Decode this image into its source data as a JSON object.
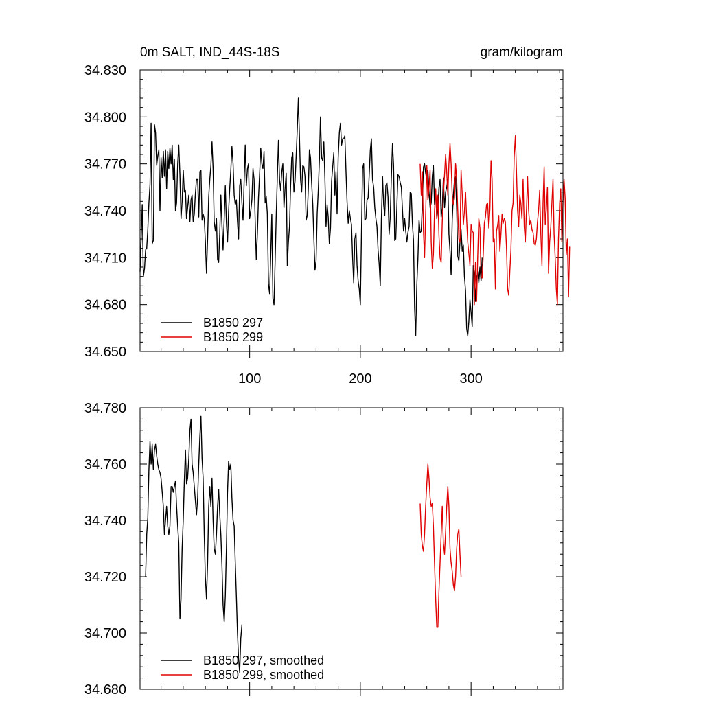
{
  "chart_data": [
    {
      "type": "line",
      "title_left": "0m SALT, IND_44S-18S",
      "title_right": "gram/kilogram",
      "xlabel": "",
      "ylabel": "",
      "xlim": [
        1,
        383
      ],
      "ylim": [
        34.65,
        34.83
      ],
      "yticks": [
        "34.650",
        "34.680",
        "34.710",
        "34.740",
        "34.770",
        "34.800",
        "34.830"
      ],
      "xticks": [
        "100",
        "200",
        "300"
      ],
      "legend_position": "bottom-left",
      "series": [
        {
          "name": "B1850 297",
          "color": "#000000",
          "x_start": 1,
          "values": [
            34.701,
            34.722,
            34.744,
            34.698,
            34.703,
            34.715,
            34.716,
            34.728,
            34.745,
            34.757,
            34.796,
            34.719,
            34.721,
            34.795,
            34.79,
            34.769,
            34.775,
            34.779,
            34.74,
            34.774,
            34.761,
            34.778,
            34.762,
            34.779,
            34.754,
            34.778,
            34.767,
            34.78,
            34.77,
            34.782,
            34.76,
            34.773,
            34.74,
            34.745,
            34.77,
            34.782,
            34.763,
            34.735,
            34.746,
            34.766,
            34.752,
            34.753,
            34.735,
            34.742,
            34.75,
            34.733,
            34.747,
            34.75,
            34.733,
            34.738,
            34.751,
            34.76,
            34.76,
            34.736,
            34.765,
            34.766,
            34.734,
            34.738,
            34.735,
            34.721,
            34.7,
            34.722,
            34.749,
            34.76,
            34.769,
            34.784,
            34.767,
            34.733,
            34.727,
            34.735,
            34.709,
            34.707,
            34.726,
            34.75,
            34.731,
            34.715,
            34.735,
            34.756,
            34.732,
            34.72,
            34.74,
            34.754,
            34.766,
            34.781,
            34.77,
            34.75,
            34.744,
            34.747,
            34.733,
            34.722,
            34.756,
            34.76,
            34.745,
            34.734,
            34.758,
            34.782,
            34.756,
            34.767,
            34.77,
            34.735,
            34.74,
            34.747,
            34.767,
            34.76,
            34.734,
            34.709,
            34.725,
            34.748,
            34.764,
            34.78,
            34.77,
            34.767,
            34.778,
            34.745,
            34.749,
            34.738,
            34.693,
            34.687,
            34.711,
            34.738,
            34.684,
            34.68,
            34.707,
            34.736,
            34.762,
            34.785,
            34.76,
            34.753,
            34.765,
            34.77,
            34.742,
            34.754,
            34.764,
            34.705,
            34.72,
            34.73,
            34.756,
            34.774,
            34.777,
            34.752,
            34.759,
            34.775,
            34.792,
            34.812,
            34.787,
            34.76,
            34.752,
            34.769,
            34.768,
            34.762,
            34.734,
            34.737,
            34.754,
            34.779,
            34.774,
            34.758,
            34.744,
            34.722,
            34.702,
            34.708,
            34.738,
            34.753,
            34.772,
            34.8,
            34.774,
            34.772,
            34.784,
            34.76,
            34.73,
            34.744,
            34.736,
            34.719,
            34.729,
            34.759,
            34.768,
            34.777,
            34.75,
            34.765,
            34.738,
            34.774,
            34.79,
            34.796,
            34.782,
            34.786,
            34.786,
            34.788,
            34.766,
            34.746,
            34.732,
            34.74,
            34.735,
            34.731,
            34.71,
            34.694,
            34.722,
            34.726,
            34.705,
            34.695,
            34.69,
            34.68,
            34.725,
            34.767,
            34.77,
            34.734,
            34.735,
            34.747,
            34.748,
            34.763,
            34.779,
            34.786,
            34.76,
            34.755,
            34.742,
            34.735,
            34.73,
            34.715,
            34.706,
            34.692,
            34.734,
            34.762,
            34.744,
            34.737,
            34.756,
            34.758,
            34.749,
            34.725,
            34.736,
            34.762,
            34.783,
            34.769,
            34.721,
            34.722,
            34.743,
            34.763,
            34.762,
            34.758,
            34.755,
            34.741,
            34.727,
            34.735,
            34.727,
            34.72,
            34.726,
            34.73,
            34.752,
            34.751,
            34.732,
            34.721,
            34.678,
            34.66,
            34.692,
            34.71,
            34.734,
            34.726,
            34.727,
            34.745,
            34.768,
            34.77,
            34.764,
            34.76,
            34.766,
            34.752,
            34.742,
            34.745,
            34.762,
            34.769,
            34.744,
            34.753,
            34.735,
            34.741,
            34.755,
            34.76,
            34.736,
            34.742,
            34.761,
            34.742,
            34.752,
            34.755,
            34.76,
            34.725,
            34.714,
            34.699,
            34.734,
            34.75,
            34.76,
            34.762,
            34.741,
            34.711,
            34.708,
            34.72,
            34.728,
            34.714,
            34.718,
            34.698,
            34.689,
            34.665,
            34.66,
            34.669,
            34.683,
            34.675,
            34.666,
            34.705,
            34.7,
            34.682,
            34.697,
            34.701,
            34.694,
            34.704,
            34.695,
            34.71
          ]
        },
        {
          "name": "B1850 299",
          "color": "#e00000",
          "x_start": 254,
          "values": [
            34.77,
            34.75,
            34.765,
            34.727,
            34.71,
            34.738,
            34.769,
            34.747,
            34.755,
            34.766,
            34.72,
            34.703,
            34.712,
            34.74,
            34.754,
            34.735,
            34.75,
            34.724,
            34.71,
            34.707,
            34.733,
            34.75,
            34.763,
            34.776,
            34.765,
            34.75,
            34.77,
            34.783,
            34.77,
            34.75,
            34.744,
            34.748,
            34.77,
            34.76,
            34.74,
            34.722,
            34.72,
            34.766,
            34.75,
            34.731,
            34.74,
            34.752,
            34.735,
            34.72,
            34.713,
            34.705,
            34.731,
            34.727,
            34.726,
            34.68,
            34.707,
            34.682,
            34.71,
            34.735,
            34.729,
            34.698,
            34.697,
            34.712,
            34.732,
            34.736,
            34.744,
            34.745,
            34.729,
            34.741,
            34.772,
            34.76,
            34.72,
            34.722,
            34.69,
            34.727,
            34.731,
            34.737,
            34.714,
            34.725,
            34.738,
            34.732,
            34.735,
            34.733,
            34.716,
            34.69,
            34.686,
            34.701,
            34.715,
            34.74,
            34.745,
            34.775,
            34.788,
            34.765,
            34.74,
            34.73,
            34.75,
            34.745,
            34.735,
            34.76,
            34.73,
            34.72,
            34.74,
            34.762,
            34.74,
            34.731,
            34.734,
            34.728,
            34.726,
            34.719,
            34.718,
            34.722,
            34.733,
            34.74,
            34.753,
            34.726,
            34.705,
            34.745,
            34.768,
            34.731,
            34.741,
            34.755,
            34.7,
            34.72,
            34.73,
            34.745,
            34.76,
            34.725,
            34.71,
            34.69,
            34.68,
            34.722,
            34.745,
            34.754,
            34.72,
            34.745,
            34.76,
            34.748,
            34.712,
            34.722,
            34.685,
            34.717
          ]
        }
      ]
    },
    {
      "type": "line",
      "title_left": "",
      "title_right": "",
      "xlabel": "",
      "ylabel": "",
      "xlim": [
        1,
        383
      ],
      "ylim": [
        34.68,
        34.78
      ],
      "yticks": [
        "34.680",
        "34.700",
        "34.720",
        "34.740",
        "34.760",
        "34.780"
      ],
      "xticks": [],
      "legend_position": "bottom-left",
      "series": [
        {
          "name": "B1850 297, smoothed",
          "color": "#000000",
          "x_start": 6,
          "values": [
            34.72,
            34.735,
            34.741,
            34.758,
            34.768,
            34.76,
            34.767,
            34.758,
            34.765,
            34.767,
            34.763,
            34.76,
            34.758,
            34.757,
            34.755,
            34.75,
            34.745,
            34.735,
            34.74,
            34.745,
            34.738,
            34.735,
            34.738,
            34.752,
            34.752,
            34.75,
            34.752,
            34.754,
            34.745,
            34.738,
            34.732,
            34.705,
            34.712,
            34.73,
            34.74,
            34.754,
            34.765,
            34.753,
            34.755,
            34.762,
            34.772,
            34.776,
            34.76,
            34.757,
            34.752,
            34.747,
            34.742,
            34.748,
            34.76,
            34.77,
            34.777,
            34.762,
            34.755,
            34.735,
            34.72,
            34.712,
            34.725,
            34.745,
            34.752,
            34.745,
            34.755,
            34.74,
            34.73,
            34.728,
            34.735,
            34.745,
            34.751,
            34.742,
            34.735,
            34.724,
            34.71,
            34.704,
            34.713,
            34.73,
            34.75,
            34.761,
            34.758,
            34.76,
            34.748,
            34.74,
            34.738,
            34.725,
            34.713,
            34.7,
            34.691,
            34.686,
            34.698,
            34.703
          ]
        },
        {
          "name": "B1850 299, smoothed",
          "color": "#e00000",
          "x_start": 254,
          "values": [
            34.746,
            34.735,
            34.731,
            34.729,
            34.735,
            34.745,
            34.753,
            34.76,
            34.755,
            34.748,
            34.745,
            34.746,
            34.738,
            34.725,
            34.712,
            34.702,
            34.702,
            34.715,
            34.725,
            34.735,
            34.745,
            34.732,
            34.728,
            34.736,
            34.745,
            34.752,
            34.745,
            34.73,
            34.725,
            34.722,
            34.717,
            34.715,
            34.72,
            34.73,
            34.735,
            34.737,
            34.728,
            34.72
          ]
        }
      ]
    }
  ]
}
